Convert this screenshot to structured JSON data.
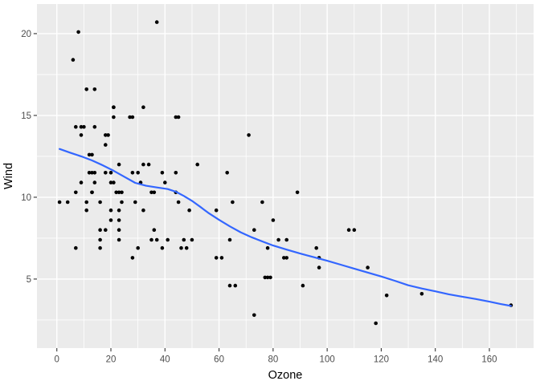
{
  "chart_data": {
    "type": "scatter",
    "title": "",
    "xlabel": "Ozone",
    "ylabel": "Wind",
    "legend": "none",
    "grid": "major-and-minor-white-on-grey",
    "xlim": [
      -7.35,
      176.35
    ],
    "ylim": [
      0.78,
      21.81
    ],
    "x_ticks": [
      0,
      20,
      40,
      60,
      80,
      100,
      120,
      140,
      160
    ],
    "x_tick_labels": [
      "0",
      "20",
      "40",
      "60",
      "80",
      "100",
      "120",
      "140",
      "160"
    ],
    "y_ticks": [
      5,
      10,
      15,
      20
    ],
    "y_tick_labels": [
      "5",
      "10",
      "15",
      "20"
    ],
    "x_minor_ticks": [
      10,
      30,
      50,
      70,
      90,
      110,
      130,
      150,
      170
    ],
    "y_minor_ticks": [
      2.5,
      7.5,
      12.5,
      17.5
    ],
    "points": [
      [
        41,
        7.4
      ],
      [
        36,
        8.0
      ],
      [
        12,
        12.6
      ],
      [
        18,
        11.5
      ],
      [
        28,
        14.9
      ],
      [
        23,
        8.6
      ],
      [
        19,
        13.8
      ],
      [
        8,
        20.1
      ],
      [
        7,
        6.9
      ],
      [
        16,
        9.7
      ],
      [
        11,
        9.2
      ],
      [
        14,
        10.9
      ],
      [
        18,
        13.2
      ],
      [
        14,
        11.5
      ],
      [
        34,
        12.0
      ],
      [
        6,
        18.4
      ],
      [
        30,
        11.5
      ],
      [
        11,
        9.7
      ],
      [
        1,
        9.7
      ],
      [
        11,
        16.6
      ],
      [
        4,
        9.7
      ],
      [
        32,
        12.0
      ],
      [
        23,
        12.0
      ],
      [
        45,
        14.9
      ],
      [
        115,
        5.7
      ],
      [
        37,
        7.4
      ],
      [
        29,
        9.7
      ],
      [
        71,
        13.8
      ],
      [
        39,
        11.5
      ],
      [
        23,
        8.0
      ],
      [
        21,
        14.9
      ],
      [
        37,
        20.7
      ],
      [
        20,
        9.2
      ],
      [
        12,
        11.5
      ],
      [
        13,
        10.3
      ],
      [
        135,
        4.1
      ],
      [
        49,
        9.2
      ],
      [
        32,
        9.2
      ],
      [
        64,
        4.6
      ],
      [
        40,
        10.9
      ],
      [
        77,
        5.1
      ],
      [
        97,
        6.3
      ],
      [
        97,
        5.7
      ],
      [
        85,
        7.4
      ],
      [
        10,
        14.3
      ],
      [
        27,
        14.9
      ],
      [
        7,
        14.3
      ],
      [
        48,
        6.9
      ],
      [
        35,
        10.3
      ],
      [
        61,
        6.3
      ],
      [
        79,
        5.1
      ],
      [
        63,
        11.5
      ],
      [
        16,
        6.9
      ],
      [
        80,
        8.6
      ],
      [
        108,
        8.0
      ],
      [
        20,
        8.6
      ],
      [
        52,
        12.0
      ],
      [
        82,
        7.4
      ],
      [
        50,
        7.4
      ],
      [
        64,
        7.4
      ],
      [
        59,
        9.2
      ],
      [
        39,
        6.9
      ],
      [
        9,
        13.8
      ],
      [
        16,
        7.4
      ],
      [
        78,
        6.9
      ],
      [
        35,
        7.4
      ],
      [
        66,
        4.6
      ],
      [
        122,
        4.0
      ],
      [
        89,
        10.3
      ],
      [
        110,
        8.0
      ],
      [
        44,
        11.5
      ],
      [
        28,
        11.5
      ],
      [
        65,
        9.7
      ],
      [
        22,
        10.3
      ],
      [
        59,
        6.3
      ],
      [
        23,
        7.4
      ],
      [
        31,
        10.9
      ],
      [
        44,
        10.3
      ],
      [
        21,
        15.5
      ],
      [
        9,
        14.3
      ],
      [
        45,
        9.7
      ],
      [
        168,
        3.4
      ],
      [
        73,
        8.0
      ],
      [
        76,
        9.7
      ],
      [
        118,
        2.3
      ],
      [
        84,
        6.3
      ],
      [
        85,
        6.3
      ],
      [
        96,
        6.9
      ],
      [
        78,
        5.1
      ],
      [
        73,
        2.8
      ],
      [
        91,
        4.6
      ],
      [
        47,
        7.4
      ],
      [
        32,
        15.5
      ],
      [
        20,
        10.9
      ],
      [
        23,
        10.3
      ],
      [
        21,
        10.9
      ],
      [
        24,
        9.7
      ],
      [
        44,
        14.9
      ],
      [
        21,
        15.5
      ],
      [
        28,
        6.3
      ],
      [
        9,
        10.9
      ],
      [
        13,
        11.5
      ],
      [
        46,
        6.9
      ],
      [
        18,
        13.8
      ],
      [
        13,
        10.3
      ],
      [
        24,
        10.3
      ],
      [
        16,
        8.0
      ],
      [
        13,
        12.6
      ],
      [
        23,
        9.2
      ],
      [
        36,
        10.3
      ],
      [
        7,
        10.3
      ],
      [
        14,
        16.6
      ],
      [
        30,
        6.9
      ],
      [
        14,
        14.3
      ],
      [
        18,
        8.0
      ],
      [
        20,
        11.5
      ]
    ],
    "smooth_line": {
      "type": "loess",
      "x": [
        1,
        5,
        9,
        13,
        17,
        21,
        25,
        29,
        33,
        37,
        41,
        44,
        47,
        50,
        53,
        56,
        60,
        64,
        68,
        72,
        76,
        80,
        85,
        90,
        95,
        100,
        105,
        110,
        115,
        120,
        125,
        130,
        135,
        140,
        145,
        150,
        155,
        160,
        164,
        168
      ],
      "y": [
        12.95,
        12.72,
        12.5,
        12.25,
        11.95,
        11.62,
        11.25,
        10.88,
        10.7,
        10.6,
        10.5,
        10.34,
        10.08,
        9.78,
        9.42,
        9.05,
        8.62,
        8.22,
        7.86,
        7.56,
        7.3,
        7.05,
        6.8,
        6.56,
        6.34,
        6.12,
        5.88,
        5.64,
        5.4,
        5.16,
        4.9,
        4.62,
        4.42,
        4.25,
        4.07,
        3.92,
        3.78,
        3.62,
        3.48,
        3.36
      ]
    },
    "colors": {
      "outer_background": "#FFFFFF",
      "panel_background": "#EBEBEB",
      "grid_major": "#FFFFFF",
      "grid_minor": "#FFFFFF",
      "point": "#000000",
      "smooth_line": "#3366FF",
      "tick_mark": "#333333",
      "tick_label": "#4D4D4D",
      "axis_title": "#000000"
    }
  }
}
